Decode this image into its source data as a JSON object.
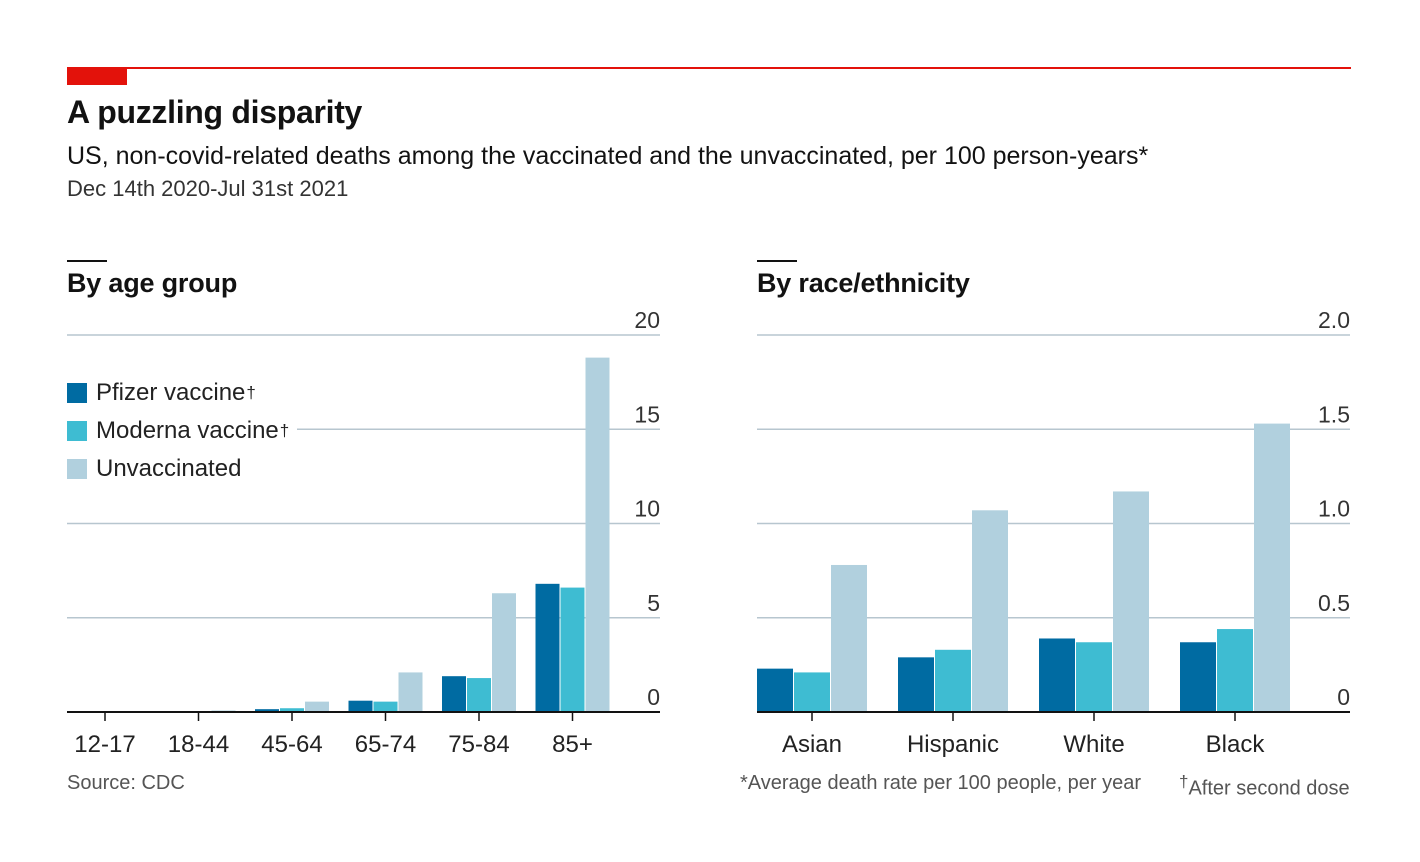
{
  "header": {
    "title": "A puzzling disparity",
    "subtitle": "US, non-covid-related deaths among the vaccinated and the unvaccinated, per 100 person-years*",
    "date_range": "Dec 14th 2020-Jul 31st 2021"
  },
  "legend": {
    "pfizer": "Pfizer vaccine",
    "moderna": "Moderna vaccine",
    "unvaccinated": "Unvaccinated",
    "dagger": "†"
  },
  "footer": {
    "source": "Source: CDC",
    "note": "*Average death rate per 100 people, per year",
    "dagger_mark": "†",
    "dagger_note": "After second dose"
  },
  "colors": {
    "accent": "#e3120b",
    "pfizer": "#006ba2",
    "moderna": "#3ebcd2",
    "unvaccinated": "#b1d0de",
    "grid": "#b7c6cf"
  },
  "chart_data": [
    {
      "type": "bar",
      "title": "By age group",
      "categories": [
        "12-17",
        "18-44",
        "45-64",
        "65-74",
        "75-84",
        "85+"
      ],
      "series": [
        {
          "name": "Pfizer vaccine",
          "values": [
            0.02,
            0.05,
            0.15,
            0.6,
            1.9,
            6.8
          ]
        },
        {
          "name": "Moderna vaccine",
          "values": [
            0.02,
            0.05,
            0.2,
            0.55,
            1.8,
            6.6
          ]
        },
        {
          "name": "Unvaccinated",
          "values": [
            0.03,
            0.08,
            0.55,
            2.1,
            6.3,
            18.8
          ]
        }
      ],
      "yticks": [
        "0",
        "5",
        "10",
        "15",
        "20"
      ],
      "ylim": [
        0,
        20
      ],
      "xlabel": "",
      "ylabel": ""
    },
    {
      "type": "bar",
      "title": "By race/ethnicity",
      "categories": [
        "Asian",
        "Hispanic",
        "White",
        "Black"
      ],
      "series": [
        {
          "name": "Pfizer vaccine",
          "values": [
            0.23,
            0.29,
            0.39,
            0.37
          ]
        },
        {
          "name": "Moderna vaccine",
          "values": [
            0.21,
            0.33,
            0.37,
            0.44
          ]
        },
        {
          "name": "Unvaccinated",
          "values": [
            0.78,
            1.07,
            1.17,
            1.53
          ]
        }
      ],
      "yticks": [
        "0",
        "0.5",
        "1.0",
        "1.5",
        "2.0"
      ],
      "ylim": [
        0,
        2
      ],
      "xlabel": "",
      "ylabel": ""
    }
  ]
}
